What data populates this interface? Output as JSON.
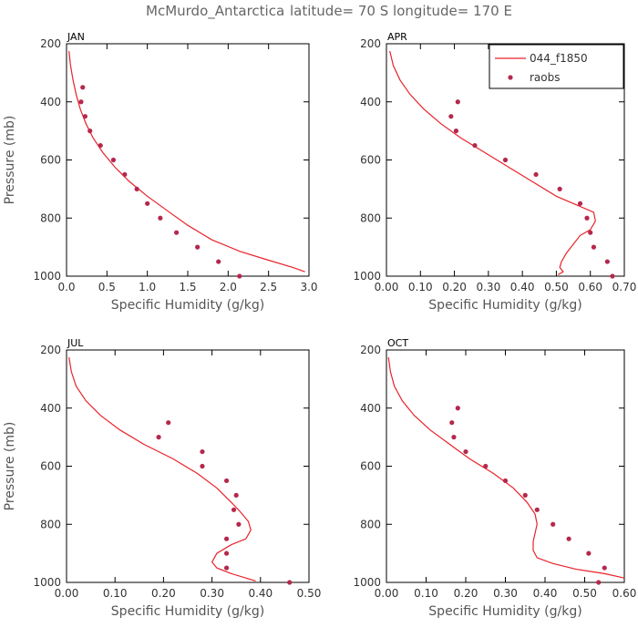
{
  "title": {
    "station": "McMurdo_Antarctica",
    "location": "latitude= 70 S longitude= 170 E"
  },
  "legend": {
    "line_label": "044_f1850",
    "dots_label": "raobs"
  },
  "colors": {
    "line": "#e8222a",
    "dots": "#b5284d"
  },
  "chart_data": [
    {
      "type": "line",
      "panel": "JAN",
      "xlabel": "Specific Humidity (g/kg)",
      "ylabel": "Pressure (mb)",
      "xlim": [
        0.0,
        3.0
      ],
      "ylim": [
        1000,
        200
      ],
      "xticks": [
        "0.0",
        "0.5",
        "1.0",
        "1.5",
        "2.0",
        "2.5",
        "3.0"
      ],
      "yticks": [
        "200",
        "400",
        "600",
        "800",
        "1000"
      ],
      "legend": false,
      "model": {
        "x": [
          0.03,
          0.05,
          0.08,
          0.12,
          0.17,
          0.24,
          0.33,
          0.45,
          0.6,
          0.78,
          1.0,
          1.25,
          1.5,
          1.8,
          2.15,
          2.5,
          2.8,
          2.95
        ],
        "y": [
          225,
          275,
          325,
          375,
          425,
          475,
          525,
          575,
          625,
          675,
          725,
          775,
          825,
          875,
          915,
          945,
          970,
          985
        ]
      },
      "raobs": {
        "x": [
          0.2,
          0.18,
          0.23,
          0.29,
          0.42,
          0.58,
          0.72,
          0.87,
          1.0,
          1.16,
          1.36,
          1.62,
          1.88,
          2.14
        ],
        "y": [
          350,
          400,
          450,
          500,
          550,
          600,
          650,
          700,
          750,
          800,
          850,
          900,
          950,
          1000
        ]
      }
    },
    {
      "type": "line",
      "panel": "APR",
      "xlabel": "Specific Humidity (g/kg)",
      "ylabel": "",
      "xlim": [
        0.0,
        0.7
      ],
      "ylim": [
        1000,
        200
      ],
      "xticks": [
        "0.00",
        "0.10",
        "0.20",
        "0.30",
        "0.40",
        "0.50",
        "0.60",
        "0.70"
      ],
      "yticks": [
        "200",
        "400",
        "600",
        "800",
        "1000"
      ],
      "legend": true,
      "model": {
        "x": [
          0.01,
          0.02,
          0.04,
          0.07,
          0.11,
          0.16,
          0.22,
          0.29,
          0.36,
          0.43,
          0.5,
          0.56,
          0.61,
          0.615,
          0.6,
          0.57,
          0.55,
          0.53,
          0.515,
          0.51,
          0.52,
          0.505
        ],
        "y": [
          225,
          275,
          325,
          375,
          425,
          475,
          525,
          575,
          625,
          675,
          725,
          755,
          780,
          810,
          840,
          860,
          890,
          920,
          950,
          970,
          985,
          995
        ]
      },
      "raobs": {
        "x": [
          0.21,
          0.19,
          0.205,
          0.26,
          0.35,
          0.44,
          0.51,
          0.57,
          0.59,
          0.6,
          0.61,
          0.65,
          0.665
        ],
        "y": [
          400,
          450,
          500,
          550,
          600,
          650,
          700,
          750,
          800,
          850,
          900,
          950,
          1000
        ]
      }
    },
    {
      "type": "line",
      "panel": "JUL",
      "xlabel": "Specific Humidity (g/kg)",
      "ylabel": "Pressure (mb)",
      "xlim": [
        0.0,
        0.5
      ],
      "ylim": [
        1000,
        200
      ],
      "xticks": [
        "0.00",
        "0.10",
        "0.20",
        "0.30",
        "0.40",
        "0.50"
      ],
      "yticks": [
        "200",
        "400",
        "600",
        "800",
        "1000"
      ],
      "legend": false,
      "model": {
        "x": [
          0.005,
          0.01,
          0.02,
          0.04,
          0.07,
          0.11,
          0.16,
          0.22,
          0.27,
          0.31,
          0.34,
          0.36,
          0.375,
          0.38,
          0.37,
          0.34,
          0.31,
          0.3,
          0.31,
          0.34,
          0.37,
          0.39
        ],
        "y": [
          225,
          275,
          325,
          375,
          425,
          475,
          525,
          575,
          625,
          675,
          725,
          760,
          790,
          820,
          850,
          870,
          900,
          930,
          950,
          970,
          985,
          995
        ]
      },
      "raobs": {
        "x": [
          0.21,
          0.19,
          0.28,
          0.28,
          0.33,
          0.35,
          0.345,
          0.355,
          0.33,
          0.33,
          0.33,
          0.46
        ],
        "y": [
          450,
          500,
          550,
          600,
          650,
          700,
          750,
          800,
          850,
          900,
          950,
          1000
        ]
      }
    },
    {
      "type": "line",
      "panel": "OCT",
      "xlabel": "Specific Humidity (g/kg)",
      "ylabel": "",
      "xlim": [
        0.0,
        0.6
      ],
      "ylim": [
        1000,
        200
      ],
      "xticks": [
        "0.00",
        "0.10",
        "0.20",
        "0.30",
        "0.40",
        "0.50",
        "0.60"
      ],
      "yticks": [
        "200",
        "400",
        "600",
        "800",
        "1000"
      ],
      "legend": false,
      "model": {
        "x": [
          0.005,
          0.01,
          0.02,
          0.04,
          0.07,
          0.11,
          0.16,
          0.21,
          0.27,
          0.32,
          0.355,
          0.375,
          0.38,
          0.375,
          0.37,
          0.37,
          0.38,
          0.42,
          0.48,
          0.55,
          0.6
        ],
        "y": [
          225,
          275,
          325,
          375,
          425,
          475,
          525,
          575,
          625,
          675,
          725,
          765,
          800,
          830,
          860,
          890,
          915,
          935,
          955,
          970,
          985
        ]
      },
      "raobs": {
        "x": [
          0.18,
          0.165,
          0.17,
          0.2,
          0.25,
          0.3,
          0.35,
          0.38,
          0.42,
          0.46,
          0.51,
          0.55,
          0.535
        ],
        "y": [
          400,
          450,
          500,
          550,
          600,
          650,
          700,
          750,
          800,
          850,
          900,
          950,
          1000
        ]
      }
    }
  ]
}
